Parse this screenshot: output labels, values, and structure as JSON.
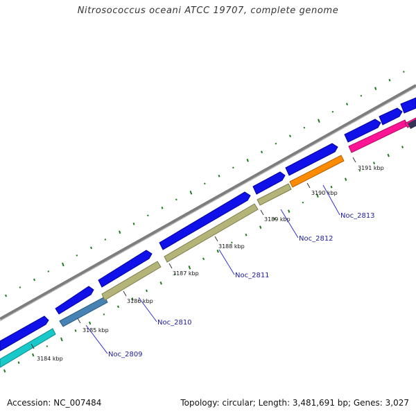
{
  "title": "Nitrosococcus oceani ATCC 19707, complete genome",
  "footer": {
    "accession": "Accession: NC_007484",
    "summary": "Topology: circular; Length: 3,481,691 bp; Genes: 3,027"
  },
  "colors": {
    "backbone": "#8a8a8a",
    "forward_gene": "#1010e8",
    "gc_ticks": "#1e7a1e",
    "label_line": "#3030d0"
  },
  "ticks": [
    {
      "label": "3184 kbp"
    },
    {
      "label": "3185 kbp"
    },
    {
      "label": "3186 kbp"
    },
    {
      "label": "3187 kbp"
    },
    {
      "label": "3188 kbp"
    },
    {
      "label": "3189 kbp"
    },
    {
      "label": "3190 kbp"
    },
    {
      "label": "3191 kbp"
    }
  ],
  "gene_labels": [
    {
      "name": "Noc_2809"
    },
    {
      "name": "Noc_2810"
    },
    {
      "name": "Noc_2811"
    },
    {
      "name": "Noc_2812"
    },
    {
      "name": "Noc_2813"
    }
  ],
  "reverse_gene_colors": {
    "Noc_2809": "#19c8c8",
    "Noc_2810": "#4682b4",
    "Noc_2811": "#b4b478",
    "Noc_2812": "#b4b478",
    "Noc_2813": "#ff8c00",
    "next": "#ff1493"
  }
}
